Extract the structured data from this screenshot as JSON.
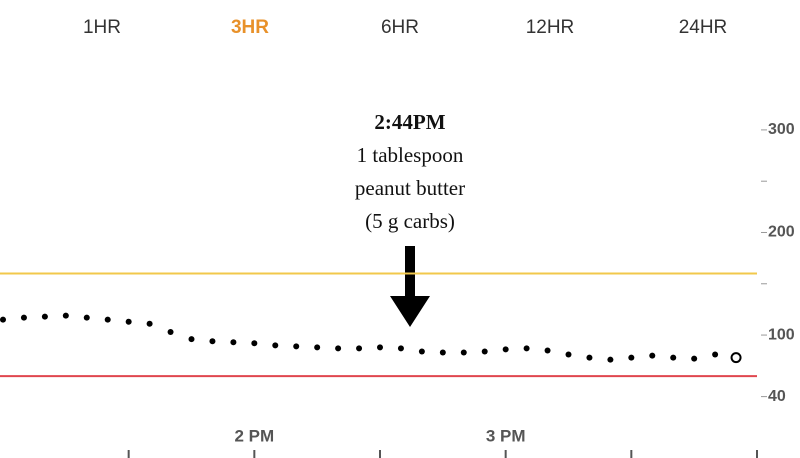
{
  "tabs": {
    "items": [
      "1HR",
      "3HR",
      "6HR",
      "12HR",
      "24HR"
    ],
    "selected": 1
  },
  "chart_data": {
    "type": "scatter",
    "annotation": {
      "time": "2:44PM",
      "lines": [
        "1 tablespoon",
        "peanut butter",
        "(5 g carbs)"
      ]
    },
    "x": [
      780,
      785,
      790,
      795,
      800,
      805,
      810,
      815,
      820,
      825,
      830,
      835,
      840,
      845,
      850,
      855,
      860,
      865,
      870,
      875,
      880,
      885,
      890,
      895,
      900,
      905,
      910,
      915,
      920,
      925,
      930,
      935,
      940,
      945,
      950,
      955
    ],
    "values": [
      115,
      117,
      118,
      119,
      117,
      115,
      113,
      111,
      103,
      96,
      94,
      93,
      92,
      90,
      89,
      88,
      87,
      87,
      88,
      87,
      84,
      83,
      83,
      84,
      86,
      87,
      85,
      81,
      78,
      76,
      78,
      80,
      78,
      77,
      81,
      78
    ],
    "color": "#000000",
    "hollow_last": true,
    "xlim": [
      780,
      960
    ],
    "xticks": [
      810,
      {
        "value": 840,
        "label": "2 PM"
      },
      870,
      {
        "value": 900,
        "label": "3 PM"
      },
      930,
      960
    ],
    "ylim": [
      25,
      335
    ],
    "yticks": [
      300,
      250,
      200,
      150,
      100,
      40
    ],
    "ytick_labels_shown": [
      300,
      200,
      100,
      40
    ],
    "high_line": {
      "value": 160,
      "color": "#f2c84b"
    },
    "low_line": {
      "value": 60,
      "color": "#e0464e"
    }
  }
}
